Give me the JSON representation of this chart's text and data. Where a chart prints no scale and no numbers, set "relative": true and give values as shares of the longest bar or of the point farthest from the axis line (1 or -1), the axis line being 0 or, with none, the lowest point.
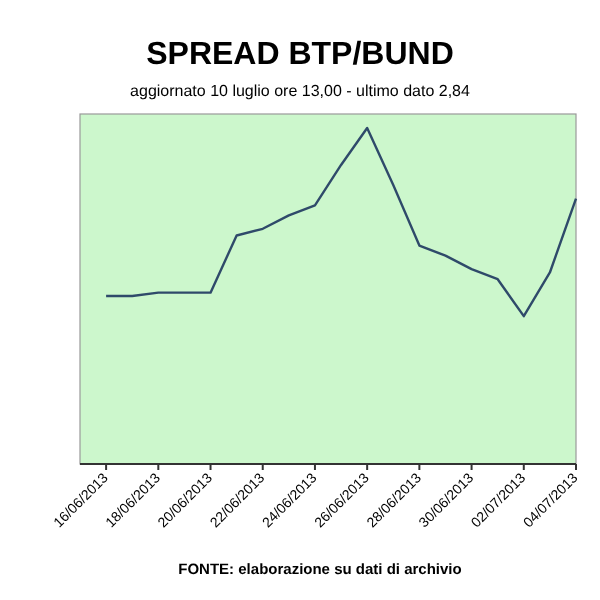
{
  "chart_data": {
    "type": "line",
    "title": "SPREAD BTP/BUND",
    "subtitle": "aggiornato 10 luglio ore 13,00 - ultimo dato 2,84",
    "annotations": [
      "FONTE: elaborazione su dati di archivio"
    ],
    "relative": true,
    "marker": "none",
    "line_style": "solid",
    "x": [
      "2013-06-16",
      "2013-06-17",
      "2013-06-18",
      "2013-06-19",
      "2013-06-20",
      "2013-06-21",
      "2013-06-22",
      "2013-06-23",
      "2013-06-24",
      "2013-06-25",
      "2013-06-26",
      "2013-06-27",
      "2013-06-28",
      "2013-06-29",
      "2013-06-30",
      "2013-07-01",
      "2013-07-02",
      "2013-07-03",
      "2013-07-04"
    ],
    "xlim": [
      "2013-06-15",
      "2013-07-04"
    ],
    "xticks": [
      {
        "value": "2013-06-16",
        "label": "16/06/2013"
      },
      {
        "value": "2013-06-18",
        "label": "18/06/2013"
      },
      {
        "value": "2013-06-20",
        "label": "20/06/2013"
      },
      {
        "value": "2013-06-22",
        "label": "22/06/2013"
      },
      {
        "value": "2013-06-24",
        "label": "24/06/2013"
      },
      {
        "value": "2013-06-26",
        "label": "26/06/2013"
      },
      {
        "value": "2013-06-28",
        "label": "28/06/2013"
      },
      {
        "value": "2013-06-30",
        "label": "30/06/2013"
      },
      {
        "value": "2013-07-02",
        "label": "02/07/2013"
      },
      {
        "value": "2013-07-04",
        "label": "04/07/2013"
      }
    ],
    "series": [
      {
        "color": "#2f4a6a",
        "values": [
          0.5,
          0.5,
          0.51,
          0.51,
          0.51,
          0.68,
          0.7,
          0.74,
          0.77,
          0.89,
          1,
          0.83,
          0.65,
          0.62,
          0.58,
          0.55,
          0.44,
          0.57,
          0.79
        ]
      }
    ]
  }
}
